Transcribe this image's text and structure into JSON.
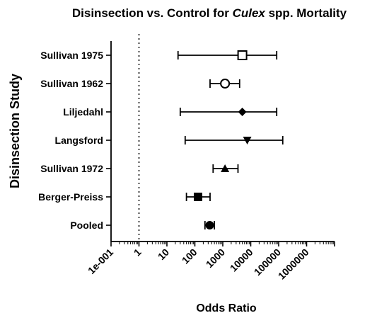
{
  "chart_data": {
    "type": "forest",
    "title": {
      "before": "Disinsection vs. Control for ",
      "italic": "Culex",
      "after": " spp. Mortality"
    },
    "xlabel": "Odds Ratio",
    "ylabel": "Disinsection Study",
    "x_scale": "log",
    "xlim": [
      0.1,
      10000000
    ],
    "x_tick_values": [
      0.1,
      1,
      10,
      100,
      1000,
      10000,
      100000,
      1000000
    ],
    "x_tick_labels": [
      "1e-001",
      "1",
      "10",
      "100",
      "1000",
      "10000",
      "100000",
      "1000000"
    ],
    "reference_line": 1,
    "studies": [
      {
        "name": "Sullivan 1975",
        "estimate": 5000,
        "lower": 25,
        "upper": 85000,
        "marker": "square-open"
      },
      {
        "name": "Sullivan 1962",
        "estimate": 1200,
        "lower": 350,
        "upper": 4000,
        "marker": "circle-open"
      },
      {
        "name": "Liljedahl",
        "estimate": 5000,
        "lower": 30,
        "upper": 85000,
        "marker": "diamond"
      },
      {
        "name": "Langsford",
        "estimate": 7500,
        "lower": 45,
        "upper": 140000,
        "marker": "triangle-down"
      },
      {
        "name": "Sullivan 1972",
        "estimate": 1200,
        "lower": 450,
        "upper": 3500,
        "marker": "triangle-up"
      },
      {
        "name": "Berger-Preiss",
        "estimate": 130,
        "lower": 50,
        "upper": 350,
        "marker": "square"
      },
      {
        "name": "Pooled",
        "estimate": 340,
        "lower": 230,
        "upper": 500,
        "marker": "circle"
      }
    ],
    "grid": false,
    "legend": "none"
  }
}
